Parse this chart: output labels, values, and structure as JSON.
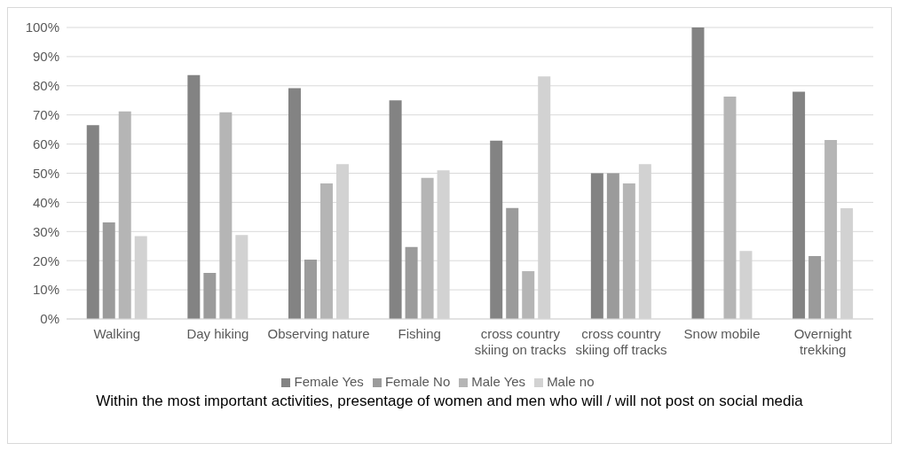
{
  "chart_data": {
    "type": "bar",
    "title": "Within the most important activities, presentage of women and men who will / will not post on social media",
    "categories": [
      "Walking",
      "Day hiking",
      "Observing nature",
      "Fishing",
      "cross country skiing on tracks",
      "cross country skiing off tracks",
      "Snow mobile",
      "Overnight trekking"
    ],
    "series": [
      {
        "name": "Female Yes",
        "color": "#838383",
        "values": [
          66.5,
          83.7,
          79.2,
          75,
          61.2,
          50,
          100,
          78
        ]
      },
      {
        "name": "Female No",
        "color": "#9b9b9b",
        "values": [
          33.1,
          15.8,
          20.4,
          24.7,
          38.1,
          50,
          0,
          21.6
        ]
      },
      {
        "name": "Male Yes",
        "color": "#b5b5b5",
        "values": [
          71.2,
          70.9,
          46.5,
          48.4,
          16.4,
          46.5,
          76.3,
          61.4
        ]
      },
      {
        "name": "Male no",
        "color": "#d2d2d2",
        "values": [
          28.4,
          28.8,
          53.1,
          51,
          83.2,
          53.1,
          23.3,
          38
        ]
      }
    ],
    "ylim": [
      0,
      100
    ],
    "yticks": [
      {
        "value": 0,
        "label": "0%"
      },
      {
        "value": 10,
        "label": "10%"
      },
      {
        "value": 20,
        "label": "20%"
      },
      {
        "value": 30,
        "label": "30%"
      },
      {
        "value": 40,
        "label": "40%"
      },
      {
        "value": 50,
        "label": "50%"
      },
      {
        "value": 60,
        "label": "60%"
      },
      {
        "value": 70,
        "label": "70%"
      },
      {
        "value": 80,
        "label": "80%"
      },
      {
        "value": 90,
        "label": "90%"
      },
      {
        "value": 100,
        "label": "100%"
      }
    ],
    "grid": "y",
    "legend": "bottom"
  }
}
